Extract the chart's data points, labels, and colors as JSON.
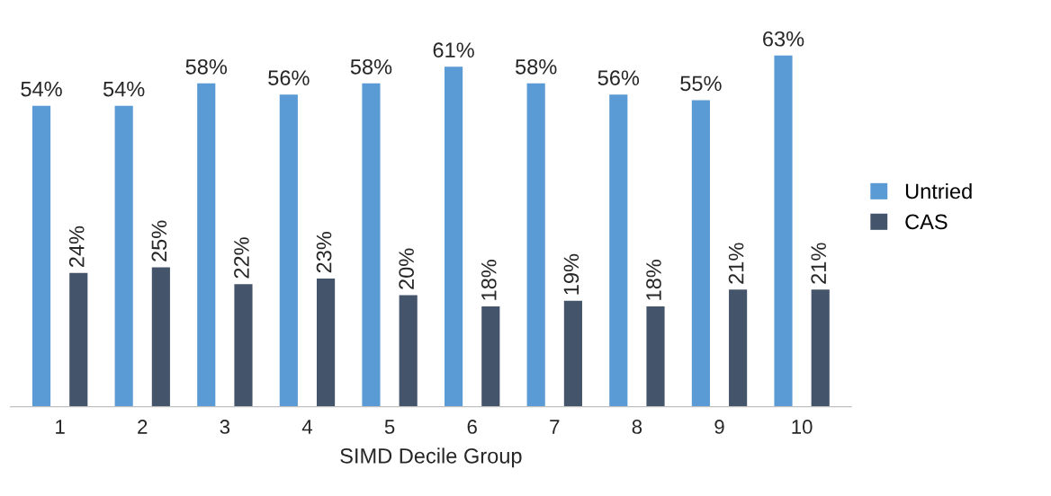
{
  "chart_data": {
    "type": "bar",
    "xlabel": "SIMD Decile Group",
    "categories": [
      "1",
      "2",
      "3",
      "4",
      "5",
      "6",
      "7",
      "8",
      "9",
      "10"
    ],
    "series": [
      {
        "name": "Untried",
        "color": "#5b9bd5",
        "values": [
          54,
          54,
          58,
          56,
          58,
          61,
          58,
          56,
          55,
          63
        ],
        "value_labels": [
          "54%",
          "54%",
          "58%",
          "56%",
          "58%",
          "61%",
          "58%",
          "56%",
          "55%",
          "63%"
        ]
      },
      {
        "name": "CAS",
        "color": "#44546a",
        "values": [
          24,
          25,
          22,
          23,
          20,
          18,
          19,
          18,
          21,
          21
        ],
        "value_labels": [
          "24%",
          "25%",
          "22%",
          "23%",
          "20%",
          "18%",
          "19%",
          "18%",
          "21%",
          "21%"
        ]
      }
    ],
    "legend": "right",
    "grid": false
  }
}
